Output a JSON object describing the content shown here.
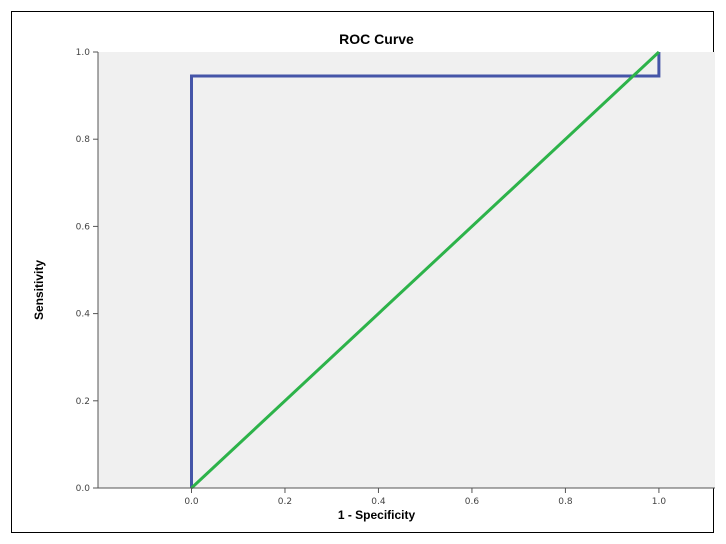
{
  "chart_data": {
    "type": "line",
    "title": "ROC Curve",
    "xlabel": "1 - Specificity",
    "ylabel": "Sensitivity",
    "xlim": [
      -0.2,
      1.12
    ],
    "ylim": [
      0.0,
      1.0
    ],
    "x_ticks": [
      0.0,
      0.2,
      0.4,
      0.6,
      0.8,
      1.0
    ],
    "y_ticks": [
      0.0,
      0.2,
      0.4,
      0.6,
      0.8,
      1.0
    ],
    "x_tick_labels": [
      "0.0",
      "0.2",
      "0.4",
      "0.6",
      "0.8",
      "1.0"
    ],
    "y_tick_labels": [
      "0.0",
      "0.2",
      "0.4",
      "0.6",
      "0.8",
      "1.0"
    ],
    "grid": false,
    "background_color": "#f0f0f0",
    "series": [
      {
        "color": "#4555a8",
        "x": [
          0.0,
          0.0,
          1.0,
          1.0
        ],
        "y": [
          0.0,
          0.945,
          0.945,
          1.0
        ]
      },
      {
        "color": "#2db34a",
        "x": [
          0.0,
          1.0
        ],
        "y": [
          0.0,
          1.0
        ]
      }
    ]
  }
}
